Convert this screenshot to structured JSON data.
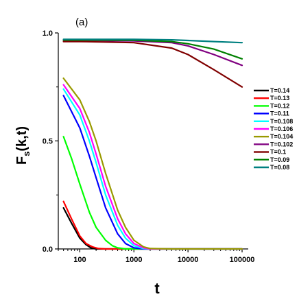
{
  "chart_data": {
    "type": "line",
    "panel_label": "(a)",
    "xlabel": "t",
    "ylabel_main": "F",
    "ylabel_sub": "s",
    "ylabel_args": "(k,t)",
    "x_scale": "log",
    "xlim": [
      40,
      130000
    ],
    "ylim": [
      0.0,
      1.0
    ],
    "x_ticks": [
      {
        "value": 100,
        "label": "100"
      },
      {
        "value": 1000,
        "label": "1000"
      },
      {
        "value": 10000,
        "label": "10000"
      },
      {
        "value": 100000,
        "label": "100000"
      }
    ],
    "y_ticks": [
      {
        "value": 0.0,
        "label": "0.0"
      },
      {
        "value": 0.5,
        "label": "0.5"
      },
      {
        "value": 1.0,
        "label": "1.0"
      }
    ],
    "legend_position": "right",
    "grid": false,
    "series": [
      {
        "name": "T=0.14",
        "color": "#000000",
        "x": [
          50,
          70,
          100,
          130,
          160,
          200,
          300,
          500,
          1000,
          3000,
          100000
        ],
        "y": [
          0.19,
          0.12,
          0.05,
          0.02,
          0.005,
          0.0,
          0.0,
          0.0,
          0.0,
          0.0,
          0.0
        ]
      },
      {
        "name": "T=0.13",
        "color": "#ff0000",
        "x": [
          50,
          70,
          100,
          130,
          170,
          220,
          300,
          500,
          1000,
          3000,
          100000
        ],
        "y": [
          0.22,
          0.14,
          0.06,
          0.025,
          0.01,
          0.002,
          0.0,
          0.0,
          0.0,
          0.0,
          0.0
        ]
      },
      {
        "name": "T=0.12",
        "color": "#00ff00",
        "x": [
          50,
          70,
          100,
          150,
          200,
          300,
          400,
          500,
          700,
          1000,
          3000,
          100000
        ],
        "y": [
          0.52,
          0.42,
          0.3,
          0.17,
          0.1,
          0.04,
          0.015,
          0.005,
          0.0,
          0.0,
          0.0,
          0.0
        ]
      },
      {
        "name": "T=0.11",
        "color": "#0000ff",
        "x": [
          50,
          100,
          150,
          200,
          300,
          500,
          700,
          1000,
          1500,
          2000,
          5000,
          100000
        ],
        "y": [
          0.71,
          0.56,
          0.43,
          0.33,
          0.19,
          0.07,
          0.025,
          0.005,
          0.0,
          0.0,
          0.0,
          0.0
        ]
      },
      {
        "name": "T=0.108",
        "color": "#00ffff",
        "x": [
          50,
          100,
          150,
          200,
          300,
          500,
          700,
          1000,
          1500,
          2000,
          5000,
          100000
        ],
        "y": [
          0.74,
          0.62,
          0.5,
          0.4,
          0.25,
          0.11,
          0.05,
          0.015,
          0.002,
          0.0,
          0.0,
          0.0
        ]
      },
      {
        "name": "T=0.106",
        "color": "#ff00ff",
        "x": [
          50,
          100,
          150,
          200,
          300,
          500,
          700,
          1000,
          1500,
          2000,
          5000,
          100000
        ],
        "y": [
          0.76,
          0.65,
          0.54,
          0.44,
          0.29,
          0.14,
          0.07,
          0.025,
          0.005,
          0.0,
          0.0,
          0.0
        ]
      },
      {
        "name": "T=0.104",
        "color": "#999900",
        "x": [
          50,
          100,
          150,
          200,
          300,
          500,
          700,
          1000,
          1500,
          2000,
          5000,
          100000
        ],
        "y": [
          0.79,
          0.69,
          0.59,
          0.5,
          0.35,
          0.18,
          0.1,
          0.04,
          0.01,
          0.002,
          0.0,
          0.0
        ]
      },
      {
        "name": "T=0.102",
        "color": "#800080",
        "x": [
          50,
          100,
          1000,
          5000,
          10000,
          30000,
          100000
        ],
        "y": [
          0.965,
          0.965,
          0.963,
          0.955,
          0.94,
          0.9,
          0.85
        ]
      },
      {
        "name": "T=0.1",
        "color": "#800000",
        "x": [
          50,
          100,
          1000,
          5000,
          10000,
          30000,
          100000
        ],
        "y": [
          0.96,
          0.96,
          0.955,
          0.93,
          0.9,
          0.83,
          0.75
        ]
      },
      {
        "name": "T=0.09",
        "color": "#008000",
        "x": [
          50,
          100,
          1000,
          5000,
          10000,
          30000,
          100000
        ],
        "y": [
          0.967,
          0.967,
          0.966,
          0.96,
          0.95,
          0.925,
          0.88
        ]
      },
      {
        "name": "T=0.08",
        "color": "#008080",
        "x": [
          50,
          100,
          1000,
          5000,
          10000,
          30000,
          100000
        ],
        "y": [
          0.97,
          0.97,
          0.97,
          0.968,
          0.965,
          0.96,
          0.955
        ]
      }
    ]
  }
}
